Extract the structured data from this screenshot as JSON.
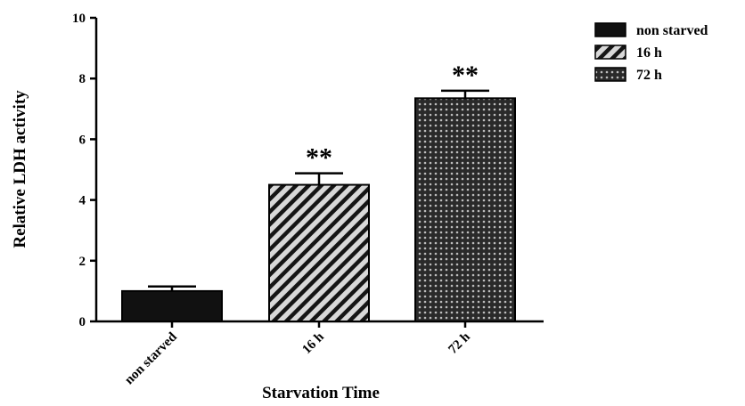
{
  "chart_data": {
    "type": "bar",
    "title": "",
    "xlabel": "Starvation Time",
    "ylabel": "Relative LDH  activity",
    "categories": [
      "non starved",
      "16 h",
      "72 h"
    ],
    "values": [
      1.0,
      4.5,
      7.35
    ],
    "errors": [
      0.15,
      0.38,
      0.25
    ],
    "annotations": [
      "",
      "**",
      "**"
    ],
    "ylim": [
      0,
      10
    ],
    "yticks": [
      "0",
      "2",
      "4",
      "6",
      "8",
      "10"
    ],
    "grid": false,
    "legend": {
      "placement": "top-right",
      "entries": [
        "non starved",
        "16 h",
        "72 h"
      ]
    },
    "fills": [
      "solid-black",
      "diagonal-hatch",
      "cross-hatch"
    ],
    "colors": {
      "bar_dark": "#111111",
      "bar_hatch_bg": "#d8d8d8",
      "axis": "#000000"
    }
  }
}
